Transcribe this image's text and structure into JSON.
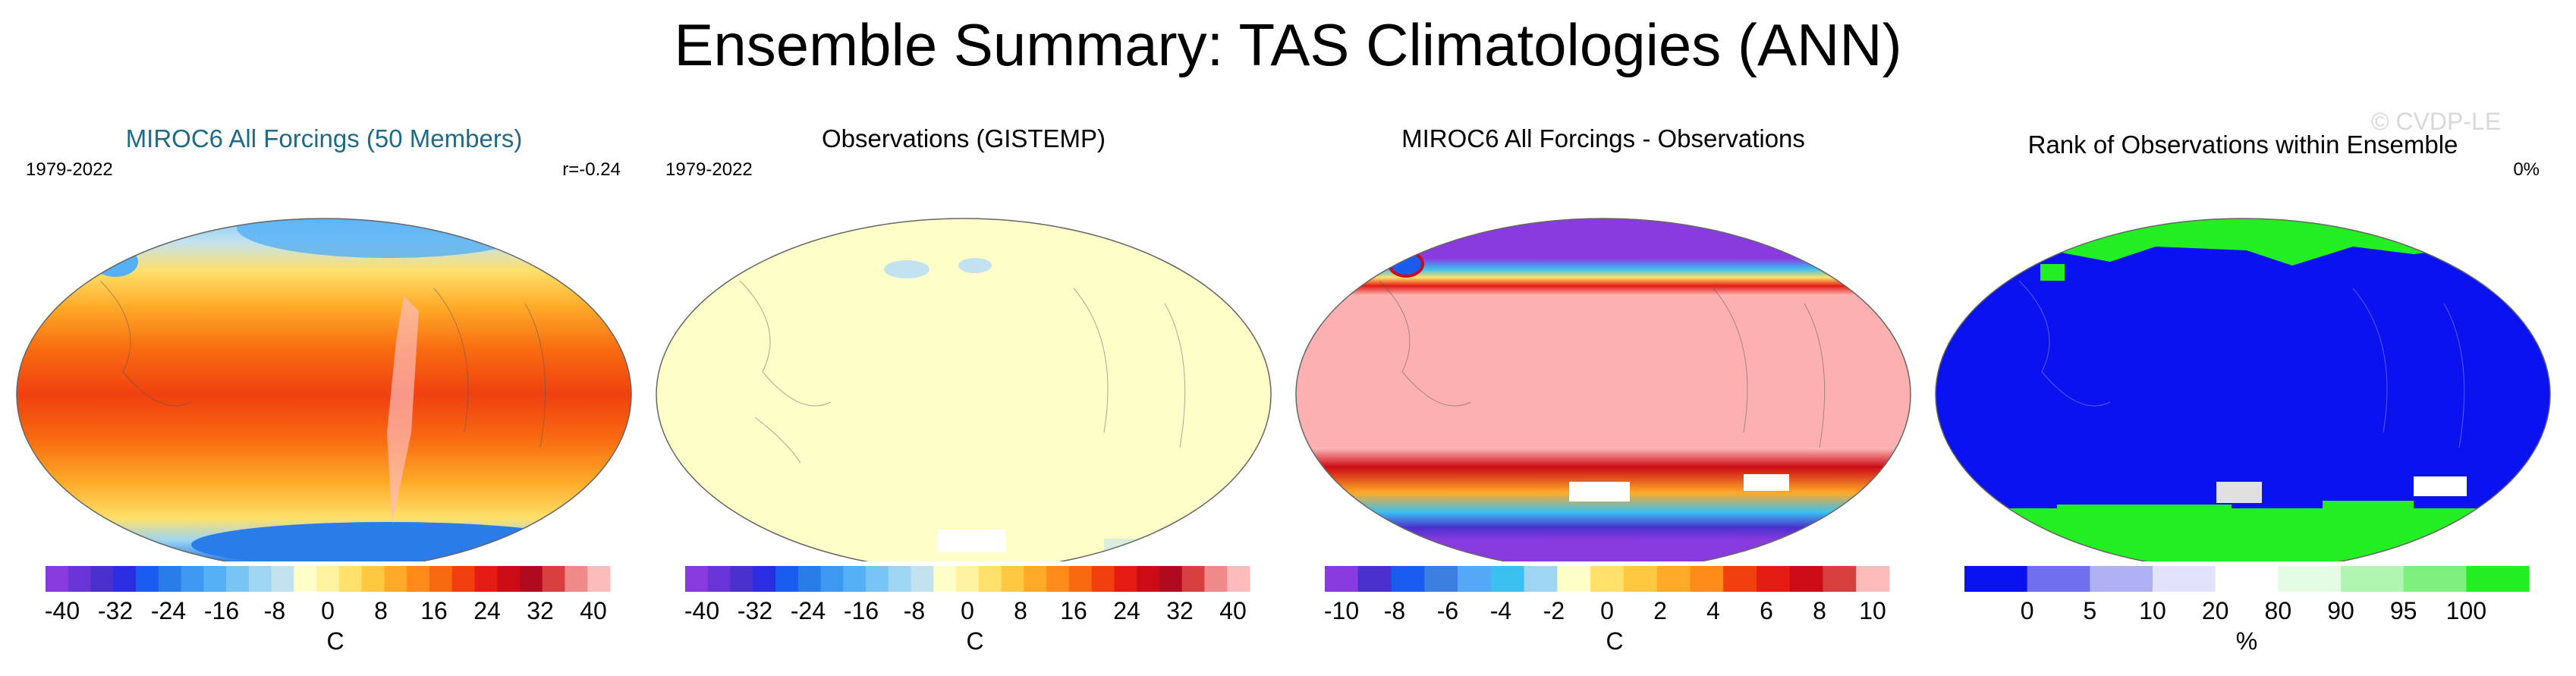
{
  "title": "Ensemble Summary: TAS Climatologies (ANN)",
  "watermark": "© CVDP-LE",
  "chart_data": [
    {
      "type": "heatmap",
      "title": "MIROC6 All Forcings (50 Members)",
      "title_color": "#1f6b86",
      "period": "1979-2022",
      "stat": "r=-0.24",
      "colorbar": {
        "colors": [
          "#8a3be0",
          "#6a35d6",
          "#4a30cc",
          "#2a2ee0",
          "#1a5cf0",
          "#2a7de8",
          "#3c98f0",
          "#55b0f5",
          "#78c5f5",
          "#9ed5f2",
          "#c2e2f0",
          "#fefec8",
          "#fef3a0",
          "#fee06a",
          "#fec840",
          "#feaa28",
          "#fe8a1a",
          "#f86a10",
          "#f04010",
          "#e41c14",
          "#cc0b16",
          "#b00a1e",
          "#d84040",
          "#f08a8a",
          "#fcbcbc"
        ],
        "tick_labels": [
          "-40",
          "-32",
          "-24",
          "-16",
          "-8",
          "0",
          "8",
          "16",
          "24",
          "32",
          "40"
        ],
        "unit": "C"
      }
    },
    {
      "type": "heatmap",
      "title": "Observations (GISTEMP)",
      "period": "1979-2022",
      "colorbar": {
        "colors": [
          "#8a3be0",
          "#6a35d6",
          "#4a30cc",
          "#2a2ee0",
          "#1a5cf0",
          "#2a7de8",
          "#3c98f0",
          "#55b0f5",
          "#78c5f5",
          "#9ed5f2",
          "#c2e2f0",
          "#fefec8",
          "#fef3a0",
          "#fee06a",
          "#fec840",
          "#feaa28",
          "#fe8a1a",
          "#f86a10",
          "#f04010",
          "#e41c14",
          "#cc0b16",
          "#b00a1e",
          "#d84040",
          "#f08a8a",
          "#fcbcbc"
        ],
        "tick_labels": [
          "-40",
          "-32",
          "-24",
          "-16",
          "-8",
          "0",
          "8",
          "16",
          "24",
          "32",
          "40"
        ],
        "unit": "C"
      }
    },
    {
      "type": "heatmap",
      "title": "MIROC6 All Forcings - Observations",
      "colorbar": {
        "colors": [
          "#8a3be0",
          "#4a30cc",
          "#1a5cf0",
          "#3c7fe0",
          "#55a8f5",
          "#3cc0f0",
          "#9ed5f2",
          "#fefec8",
          "#fee06a",
          "#fec840",
          "#feaa28",
          "#fe8a1a",
          "#f04010",
          "#e41c14",
          "#cc0b16",
          "#d84040",
          "#fcbcbc"
        ],
        "tick_labels": [
          "-10",
          "-8",
          "-6",
          "-4",
          "-2",
          "0",
          "2",
          "4",
          "6",
          "8",
          "10"
        ],
        "unit": "C"
      }
    },
    {
      "type": "heatmap",
      "title": "Rank of Observations within Ensemble",
      "stat": "0%",
      "colorbar": {
        "colors": [
          "#0a12f0",
          "#6f6ff0",
          "#b0b0f5",
          "#e2e2fa",
          "#ffffff",
          "#e4fbe4",
          "#b0f5b0",
          "#7ef07e",
          "#22ee22"
        ],
        "tick_labels": [
          "0",
          "5",
          "10",
          "20",
          "80",
          "90",
          "95",
          "100"
        ],
        "unit": "%"
      }
    }
  ]
}
